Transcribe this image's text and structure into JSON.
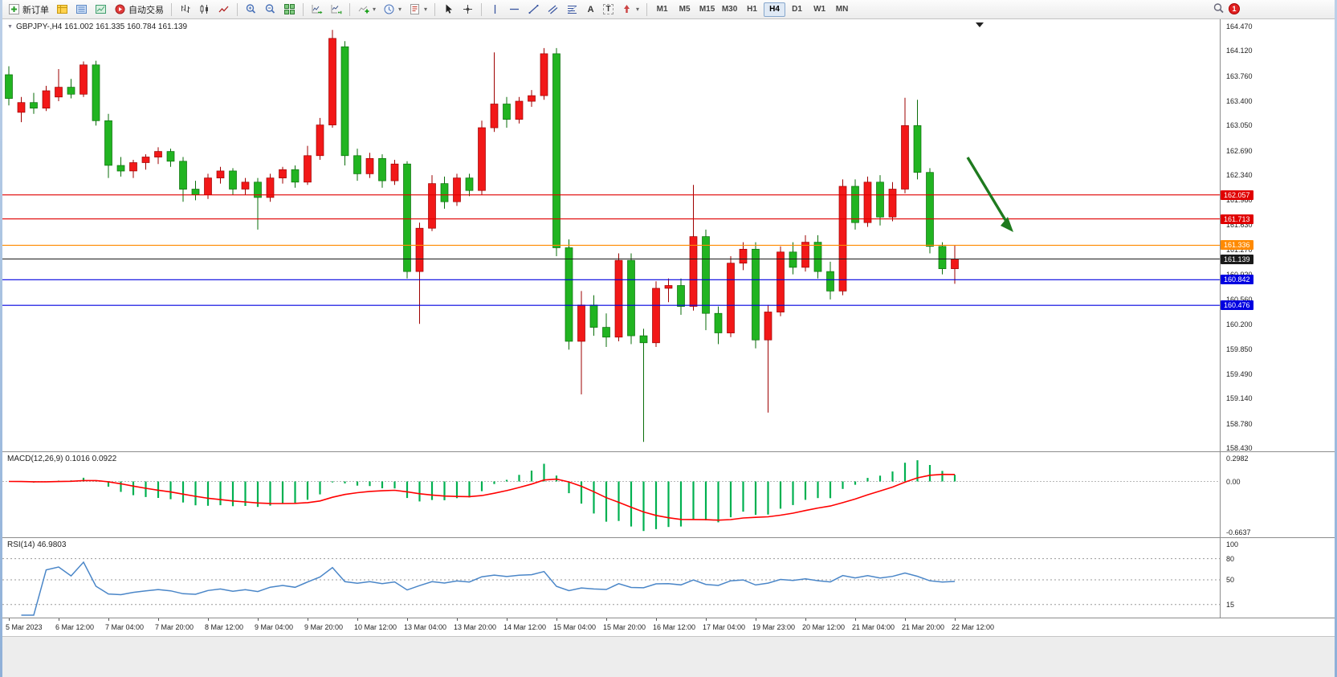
{
  "toolbar": {
    "new_order_label": "新订单",
    "auto_trading_label": "自动交易",
    "text_tool": "A",
    "label_tool": "T",
    "timeframes": [
      "M1",
      "M5",
      "M15",
      "M30",
      "H1",
      "H4",
      "D1",
      "W1",
      "MN"
    ],
    "active_timeframe": "H4",
    "notification_count": "1"
  },
  "chart": {
    "title": "GBPJPY-,H4 161.002 161.335 160.784 161.139",
    "symbol": "GBPJPY-",
    "period": "H4",
    "open": "161.002",
    "high": "161.335",
    "low": "160.784",
    "close": "161.139"
  },
  "price_scale": {
    "labels": [
      "164.470",
      "164.120",
      "163.760",
      "163.400",
      "163.050",
      "162.690",
      "162.340",
      "161.980",
      "161.630",
      "161.270",
      "160.920",
      "160.560",
      "160.200",
      "159.850",
      "159.490",
      "159.140",
      "158.780",
      "158.430"
    ]
  },
  "macd_panel": {
    "label": "MACD(12,26,9) 0.1016 0.0922"
  },
  "rsi_panel": {
    "label": "RSI(14) 46.9803"
  },
  "chart_data": {
    "type": "candlestick",
    "symbol": "GBPJPY-",
    "timeframe": "H4",
    "price_range": {
      "min": 158.43,
      "max": 164.47
    },
    "up_color": "#f21818",
    "up_stroke": "#9e0000",
    "down_color": "#21b421",
    "down_stroke": "#0a6e0a",
    "candles": [
      [
        163.78,
        163.9,
        163.34,
        163.44
      ],
      [
        163.24,
        163.46,
        163.1,
        163.38
      ],
      [
        163.38,
        163.52,
        163.22,
        163.3
      ],
      [
        163.3,
        163.62,
        163.26,
        163.55
      ],
      [
        163.46,
        163.86,
        163.4,
        163.6
      ],
      [
        163.6,
        163.72,
        163.44,
        163.5
      ],
      [
        163.5,
        163.97,
        163.46,
        163.92
      ],
      [
        163.92,
        163.98,
        163.05,
        163.12
      ],
      [
        163.12,
        163.22,
        162.3,
        162.48
      ],
      [
        162.48,
        162.6,
        162.32,
        162.4
      ],
      [
        162.4,
        162.56,
        162.3,
        162.52
      ],
      [
        162.52,
        162.64,
        162.42,
        162.6
      ],
      [
        162.6,
        162.74,
        162.5,
        162.68
      ],
      [
        162.68,
        162.72,
        162.46,
        162.54
      ],
      [
        162.54,
        162.6,
        161.96,
        162.14
      ],
      [
        162.14,
        162.26,
        161.98,
        162.06
      ],
      [
        162.06,
        162.36,
        162.0,
        162.3
      ],
      [
        162.3,
        162.46,
        162.22,
        162.4
      ],
      [
        162.4,
        162.44,
        162.06,
        162.14
      ],
      [
        162.14,
        162.3,
        162.06,
        162.24
      ],
      [
        162.24,
        162.3,
        161.56,
        162.02
      ],
      [
        162.02,
        162.36,
        161.96,
        162.3
      ],
      [
        162.3,
        162.46,
        162.22,
        162.42
      ],
      [
        162.42,
        162.48,
        162.16,
        162.24
      ],
      [
        162.24,
        162.76,
        162.2,
        162.62
      ],
      [
        162.62,
        163.16,
        162.56,
        163.06
      ],
      [
        163.06,
        164.42,
        163.02,
        164.3
      ],
      [
        164.18,
        164.26,
        162.48,
        162.62
      ],
      [
        162.62,
        162.72,
        162.26,
        162.36
      ],
      [
        162.36,
        162.66,
        162.3,
        162.58
      ],
      [
        162.58,
        162.64,
        162.16,
        162.26
      ],
      [
        162.26,
        162.56,
        162.2,
        162.5
      ],
      [
        162.5,
        162.54,
        160.86,
        160.96
      ],
      [
        160.96,
        161.66,
        160.21,
        161.58
      ],
      [
        161.58,
        162.34,
        161.54,
        162.22
      ],
      [
        162.22,
        162.32,
        161.86,
        161.96
      ],
      [
        161.96,
        162.36,
        161.9,
        162.3
      ],
      [
        162.3,
        162.36,
        162.04,
        162.12
      ],
      [
        162.12,
        163.12,
        162.06,
        163.02
      ],
      [
        163.02,
        164.1,
        162.96,
        163.36
      ],
      [
        163.36,
        163.46,
        163.02,
        163.14
      ],
      [
        163.14,
        163.46,
        163.08,
        163.4
      ],
      [
        163.4,
        163.56,
        163.32,
        163.48
      ],
      [
        163.48,
        164.16,
        163.42,
        164.08
      ],
      [
        164.08,
        164.16,
        161.18,
        161.3
      ],
      [
        161.3,
        161.42,
        159.84,
        159.96
      ],
      [
        159.96,
        160.68,
        159.2,
        160.48
      ],
      [
        160.48,
        160.62,
        160.04,
        160.16
      ],
      [
        160.16,
        160.36,
        159.88,
        160.02
      ],
      [
        160.02,
        161.22,
        159.96,
        161.12
      ],
      [
        161.12,
        161.22,
        159.92,
        160.04
      ],
      [
        160.04,
        160.14,
        158.52,
        159.94
      ],
      [
        159.94,
        160.82,
        159.88,
        160.72
      ],
      [
        160.72,
        160.86,
        160.52,
        160.76
      ],
      [
        160.76,
        160.86,
        160.34,
        160.46
      ],
      [
        160.46,
        162.2,
        160.4,
        161.46
      ],
      [
        161.46,
        161.56,
        160.12,
        160.36
      ],
      [
        160.36,
        160.46,
        159.92,
        160.08
      ],
      [
        160.08,
        161.18,
        160.02,
        161.08
      ],
      [
        161.08,
        161.38,
        160.98,
        161.28
      ],
      [
        161.28,
        161.38,
        159.86,
        159.98
      ],
      [
        159.98,
        160.48,
        158.94,
        160.38
      ],
      [
        160.38,
        161.32,
        160.32,
        161.24
      ],
      [
        161.24,
        161.38,
        160.92,
        161.02
      ],
      [
        161.02,
        161.48,
        160.96,
        161.38
      ],
      [
        161.38,
        161.48,
        160.86,
        160.96
      ],
      [
        160.96,
        161.1,
        160.56,
        160.68
      ],
      [
        160.68,
        162.28,
        160.62,
        162.18
      ],
      [
        162.18,
        162.28,
        161.56,
        161.66
      ],
      [
        161.66,
        162.32,
        161.6,
        162.24
      ],
      [
        162.24,
        162.34,
        161.62,
        161.74
      ],
      [
        161.74,
        162.24,
        161.68,
        162.14
      ],
      [
        162.14,
        163.45,
        162.08,
        163.05
      ],
      [
        163.05,
        163.42,
        162.28,
        162.38
      ],
      [
        162.38,
        162.44,
        161.22,
        161.32
      ],
      [
        161.32,
        161.38,
        160.92,
        161.0
      ],
      [
        161.0,
        161.335,
        160.784,
        161.139
      ]
    ],
    "hlines": [
      {
        "price": 162.057,
        "label": "162.057",
        "color": "#e00000"
      },
      {
        "price": 161.713,
        "label": "161.713",
        "color": "#e00000"
      },
      {
        "price": 161.336,
        "label": "161.336",
        "color": "#ff8a00"
      },
      {
        "price": 161.139,
        "label": "161.139",
        "color": "#1a1a1a"
      },
      {
        "price": 160.842,
        "label": "160.842",
        "color": "#0000e0"
      },
      {
        "price": 160.476,
        "label": "160.476",
        "color": "#0000e0"
      }
    ],
    "time_labels": [
      "5 Mar 2023",
      "6 Mar 12:00",
      "7 Mar 04:00",
      "7 Mar 20:00",
      "8 Mar 12:00",
      "9 Mar 04:00",
      "9 Mar 20:00",
      "10 Mar 12:00",
      "13 Mar 04:00",
      "13 Mar 20:00",
      "14 Mar 12:00",
      "15 Mar 04:00",
      "15 Mar 20:00",
      "16 Mar 12:00",
      "17 Mar 04:00",
      "19 Mar 23:00",
      "20 Mar 12:00",
      "21 Mar 04:00",
      "21 Mar 20:00",
      "22 Mar 12:00"
    ],
    "indicators": [
      {
        "name": "MACD",
        "params": [
          12,
          26,
          9
        ],
        "values_text": "0.1016 0.0922",
        "histogram_color": "#00b050",
        "signal_color": "#ff0000",
        "axis": {
          "max": 0.2982,
          "min": -0.6637
        },
        "axis_labels": [
          "0.2982",
          "0.00",
          "-0.6637"
        ]
      },
      {
        "name": "RSI",
        "params": [
          14
        ],
        "value_text": "46.9803",
        "line_color": "#4a86c8",
        "levels": [
          80,
          50,
          15
        ],
        "axis_labels": [
          "100",
          "80",
          "50",
          "15"
        ]
      }
    ],
    "annotation_arrow": {
      "direction": "down-right",
      "color": "#1e7a1e",
      "from_price": 162.62,
      "to_price": 161.52
    }
  }
}
